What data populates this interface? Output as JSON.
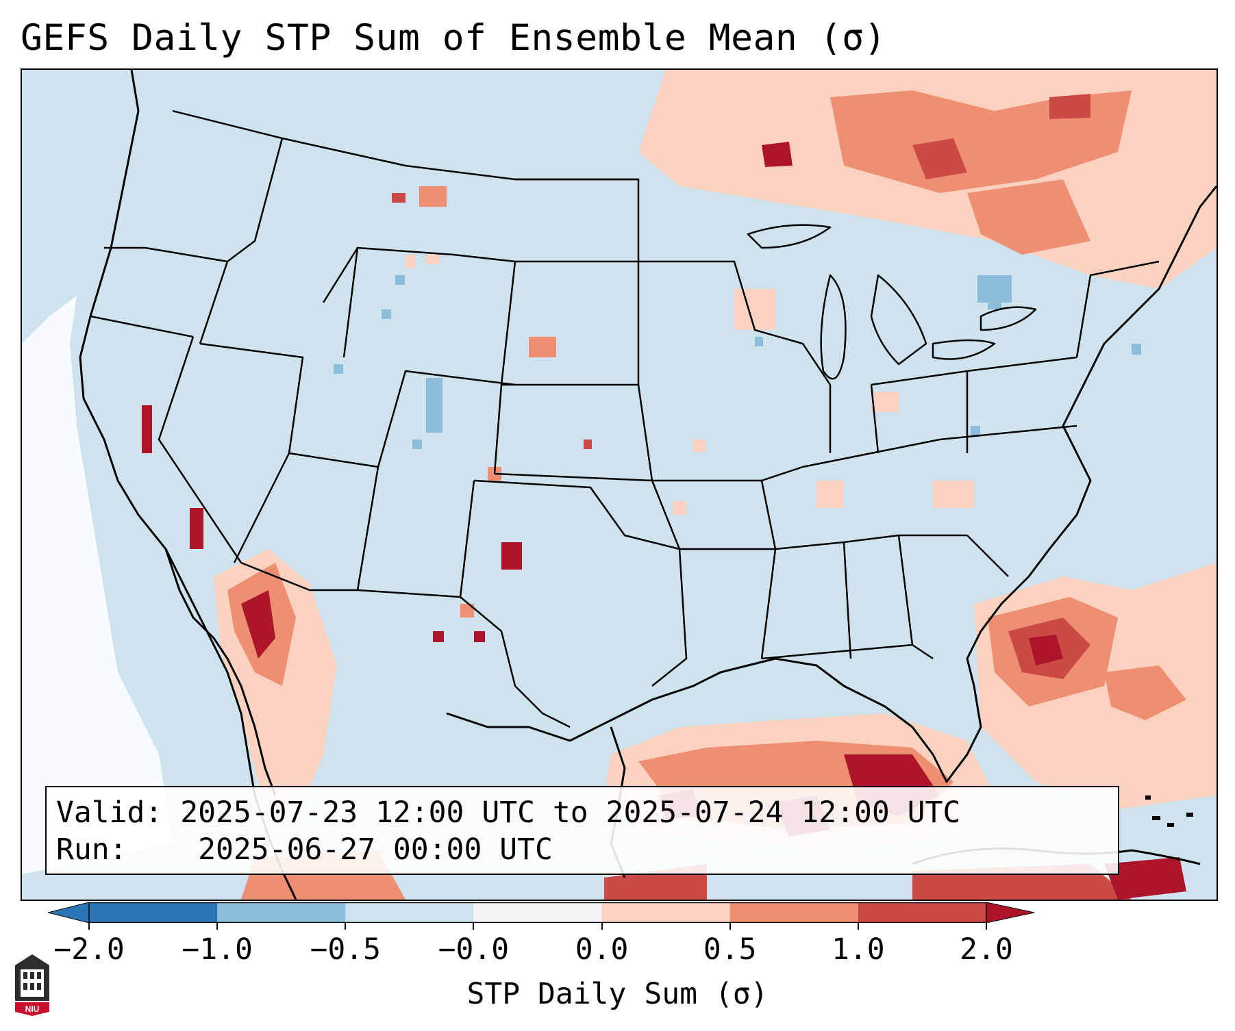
{
  "title": "GEFS Daily STP Sum of Ensemble Mean (σ)",
  "info": {
    "valid_label": "Valid:",
    "valid_value": "2025-07-23 12:00 UTC to 2025-07-24 12:00 UTC",
    "run_label": "Run:",
    "run_value": "2025-06-27 00:00 UTC"
  },
  "colorbar": {
    "label": "STP Daily Sum (σ)",
    "ticks": [
      "−2.0",
      "−1.0",
      "−0.5",
      "−0.0",
      "0.0",
      "0.5",
      "1.0",
      "2.0"
    ],
    "colors": [
      "#2b76b7",
      "#8cbedc",
      "#cfe3ef",
      "#f5f5f5",
      "#fbd2bf",
      "#ee8f73",
      "#cc4a45"
    ],
    "extend_low_color": "#2b76b7",
    "extend_high_color": "#ad162a"
  },
  "map": {
    "background_color": "#cfe3ef",
    "region": "Contiguous United States, northern Mexico, Gulf of Mexico, western Atlantic",
    "logo_text": "NIU"
  }
}
